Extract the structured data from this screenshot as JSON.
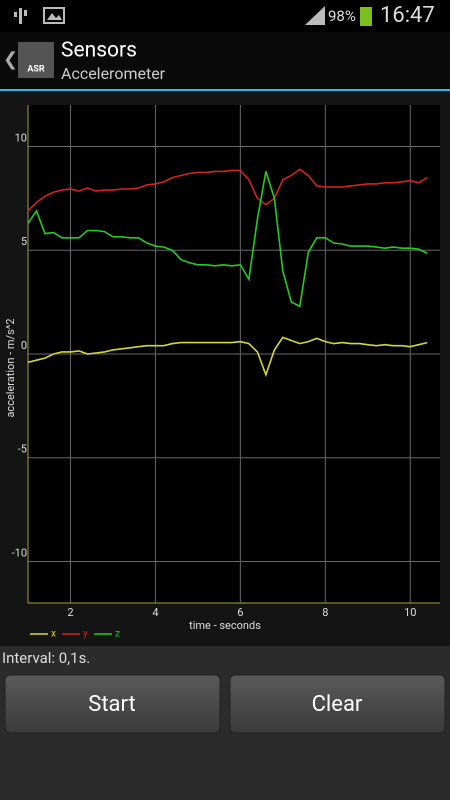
{
  "status_bar": {
    "battery": "98%",
    "time": "16:47"
  },
  "action_bar": {
    "icon_text": "ASR",
    "title": "Sensors",
    "subtitle": "Accelerometer"
  },
  "chart_data": {
    "type": "line",
    "x_label": "time - seconds",
    "y_label": "acceleration - m/s^2",
    "x": [
      1,
      1.2,
      1.4,
      1.6,
      1.8,
      2,
      2.2,
      2.4,
      2.6,
      2.8,
      3,
      3.2,
      3.4,
      3.6,
      3.8,
      4,
      4.2,
      4.4,
      4.6,
      4.8,
      5,
      5.2,
      5.4,
      5.6,
      5.8,
      6,
      6.2,
      6.4,
      6.6,
      6.8,
      7,
      7.2,
      7.4,
      7.6,
      7.8,
      8,
      8.2,
      8.4,
      8.6,
      8.8,
      9,
      9.2,
      9.4,
      9.6,
      9.8,
      10,
      10.2,
      10.4
    ],
    "series": [
      {
        "name": "x",
        "color": "#d6d63c",
        "values": [
          -0.4,
          -0.3,
          -0.2,
          0.0,
          0.1,
          0.1,
          0.15,
          0.0,
          0.05,
          0.1,
          0.2,
          0.25,
          0.3,
          0.35,
          0.4,
          0.4,
          0.4,
          0.5,
          0.55,
          0.55,
          0.55,
          0.55,
          0.55,
          0.55,
          0.55,
          0.6,
          0.5,
          0.1,
          -1.0,
          0.2,
          0.8,
          0.65,
          0.5,
          0.6,
          0.75,
          0.6,
          0.5,
          0.55,
          0.5,
          0.5,
          0.45,
          0.4,
          0.45,
          0.4,
          0.4,
          0.35,
          0.45,
          0.55
        ]
      },
      {
        "name": "y",
        "color": "#d42222",
        "values": [
          6.9,
          7.3,
          7.6,
          7.8,
          7.9,
          7.95,
          7.85,
          8.0,
          7.85,
          7.9,
          7.9,
          7.95,
          7.95,
          8.0,
          8.15,
          8.2,
          8.3,
          8.5,
          8.6,
          8.7,
          8.75,
          8.75,
          8.8,
          8.8,
          8.85,
          8.85,
          8.4,
          7.5,
          7.2,
          7.5,
          8.4,
          8.6,
          8.9,
          8.6,
          8.1,
          8.05,
          8.05,
          8.05,
          8.1,
          8.15,
          8.2,
          8.2,
          8.25,
          8.25,
          8.3,
          8.35,
          8.25,
          8.5
        ]
      },
      {
        "name": "z",
        "color": "#22cc22",
        "values": [
          6.3,
          6.9,
          5.8,
          5.85,
          5.6,
          5.6,
          5.6,
          5.95,
          5.95,
          5.9,
          5.65,
          5.65,
          5.6,
          5.6,
          5.35,
          5.2,
          5.15,
          5.0,
          4.55,
          4.4,
          4.3,
          4.3,
          4.25,
          4.3,
          4.25,
          4.3,
          3.6,
          6.5,
          8.8,
          7.5,
          4.0,
          2.5,
          2.3,
          4.9,
          5.6,
          5.6,
          5.35,
          5.3,
          5.2,
          5.2,
          5.2,
          5.15,
          5.1,
          5.15,
          5.1,
          5.1,
          5.05,
          4.85
        ]
      }
    ],
    "xlim": [
      1,
      10.7
    ],
    "xticks": [
      2,
      4,
      6,
      8,
      10
    ],
    "ylim": [
      -12,
      12
    ],
    "yticks": [
      10,
      5,
      0,
      -5,
      -10
    ],
    "grid": true,
    "legend": "bottom-left"
  },
  "interval": "Interval:  0,1s.",
  "buttons": [
    "Start",
    "Clear"
  ]
}
